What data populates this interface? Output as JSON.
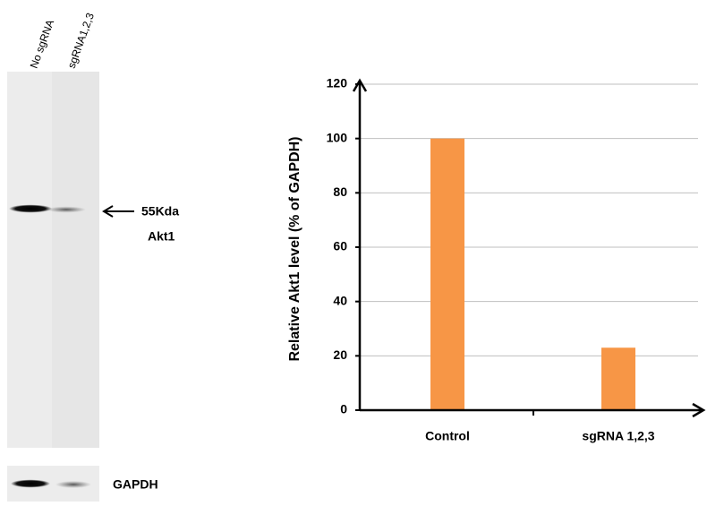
{
  "blot": {
    "lanes": [
      "No sgRNA",
      "sgRNA1,2,3"
    ],
    "band_label": "55Kda",
    "protein": "Akt1",
    "loading_control": "GAPDH"
  },
  "chart_data": {
    "type": "bar",
    "ylabel": "Relative Akt1 level  (% of GAPDH)",
    "categories": [
      "Control",
      "sgRNA 1,2,3"
    ],
    "values": [
      100,
      23
    ],
    "color": "#f79646",
    "ylim": [
      0,
      120
    ],
    "yticks": [
      0,
      20,
      40,
      60,
      80,
      100,
      120
    ],
    "grid": true
  }
}
